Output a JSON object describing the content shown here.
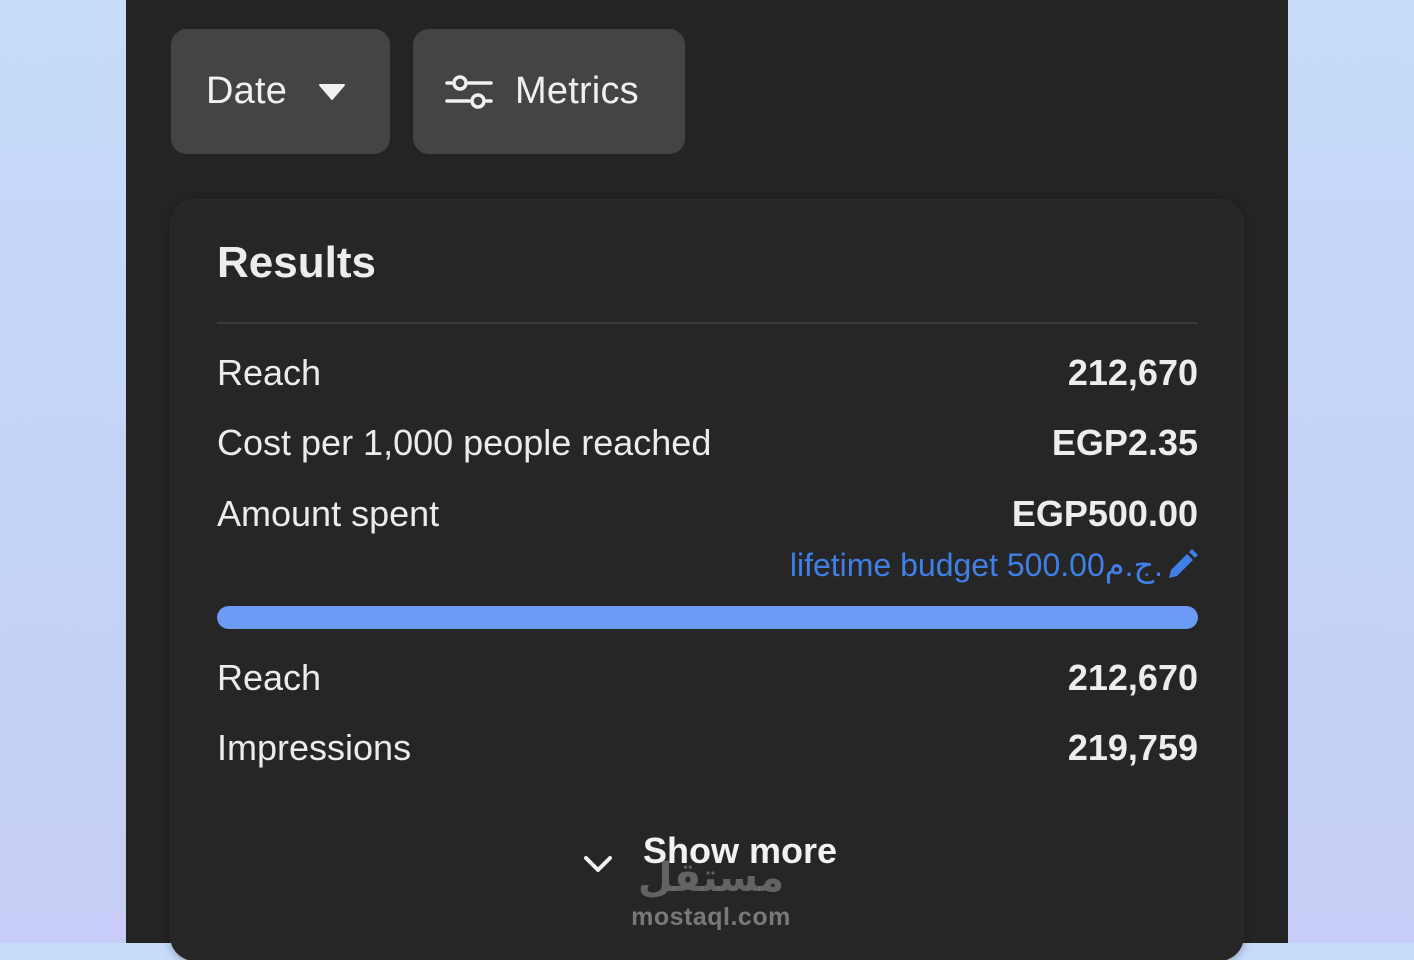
{
  "toolbar": {
    "date_label": "Date",
    "metrics_label": "Metrics",
    "date_icon": "caret-down-icon",
    "metrics_icon": "sliders-icon"
  },
  "results": {
    "title": "Results",
    "rows": [
      {
        "label": "Reach",
        "value": "212,670"
      },
      {
        "label": "Cost per 1,000 people reached",
        "value": "EGP2.35"
      },
      {
        "label": "Amount spent",
        "value": "EGP500.00"
      }
    ],
    "budget_text": "lifetime budget 500.00ج.م.",
    "budget_icon": "pencil-icon",
    "budget_progress": 1.0,
    "rows_after": [
      {
        "label": "Reach",
        "value": "212,670"
      },
      {
        "label": "Impressions",
        "value": "219,759"
      }
    ],
    "show_more_label": "Show more",
    "show_more_icon": "chevron-down-icon"
  },
  "watermark": {
    "logo": "مستقل",
    "text": "mostaql.com"
  },
  "colors": {
    "panel_bg": "#242424",
    "button_bg": "#444444",
    "accent_link": "#3f7fe6",
    "progress_fill": "#6b9bf5",
    "page_bg": "#c7dcfb"
  }
}
